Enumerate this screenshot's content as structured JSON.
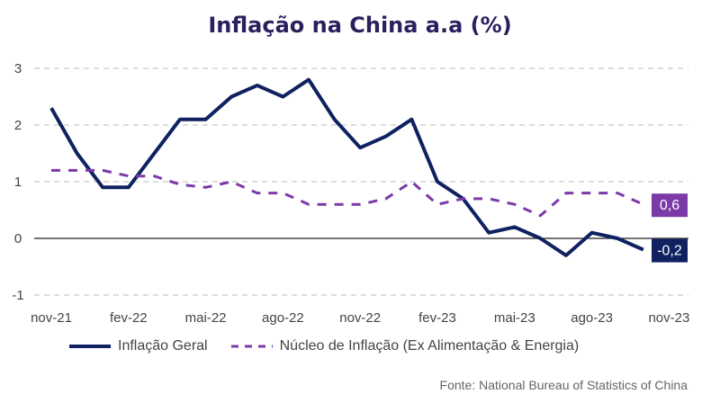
{
  "chart_data": {
    "type": "line",
    "title": "Inflação na China a.a (%)",
    "x": [
      "nov-21",
      "dez-21",
      "jan-22",
      "fev-22",
      "mar-22",
      "abr-22",
      "mai-22",
      "jun-22",
      "jul-22",
      "ago-22",
      "set-22",
      "out-22",
      "nov-22",
      "dez-22",
      "jan-23",
      "fev-23",
      "mar-23",
      "abr-23",
      "mai-23",
      "jun-23",
      "jul-23",
      "ago-23",
      "set-23",
      "out-23"
    ],
    "x_tick_labels": [
      "nov-21",
      "fev-22",
      "mai-22",
      "ago-22",
      "nov-22",
      "fev-23",
      "mai-23",
      "ago-23",
      "nov-23"
    ],
    "y_tick_labels": [
      "3",
      "2",
      "1",
      "0",
      "-1"
    ],
    "ylim": [
      -1,
      3
    ],
    "grid": "horizontal dashed",
    "legend_position": "bottom",
    "series": [
      {
        "name": "Inflação Geral",
        "color": "#0f2160",
        "style": "solid",
        "values": [
          2.3,
          1.5,
          0.9,
          0.9,
          1.5,
          2.1,
          2.1,
          2.5,
          2.7,
          2.5,
          2.8,
          2.1,
          1.6,
          1.8,
          2.1,
          1.0,
          0.7,
          0.1,
          0.2,
          0.0,
          -0.3,
          0.1,
          0.0,
          -0.2
        ],
        "end_label": "-0,2"
      },
      {
        "name": "Núcleo de Inflação (Ex Alimentação & Energia)",
        "color": "#7b3aa8",
        "style": "dashed",
        "values": [
          1.2,
          1.2,
          1.2,
          1.1,
          1.1,
          0.95,
          0.9,
          1.0,
          0.8,
          0.8,
          0.6,
          0.6,
          0.6,
          0.7,
          1.0,
          0.6,
          0.7,
          0.7,
          0.6,
          0.4,
          0.8,
          0.8,
          0.8,
          0.6
        ],
        "end_label": "0,6"
      }
    ],
    "source": "Fonte: National Bureau of Statistics of China"
  }
}
